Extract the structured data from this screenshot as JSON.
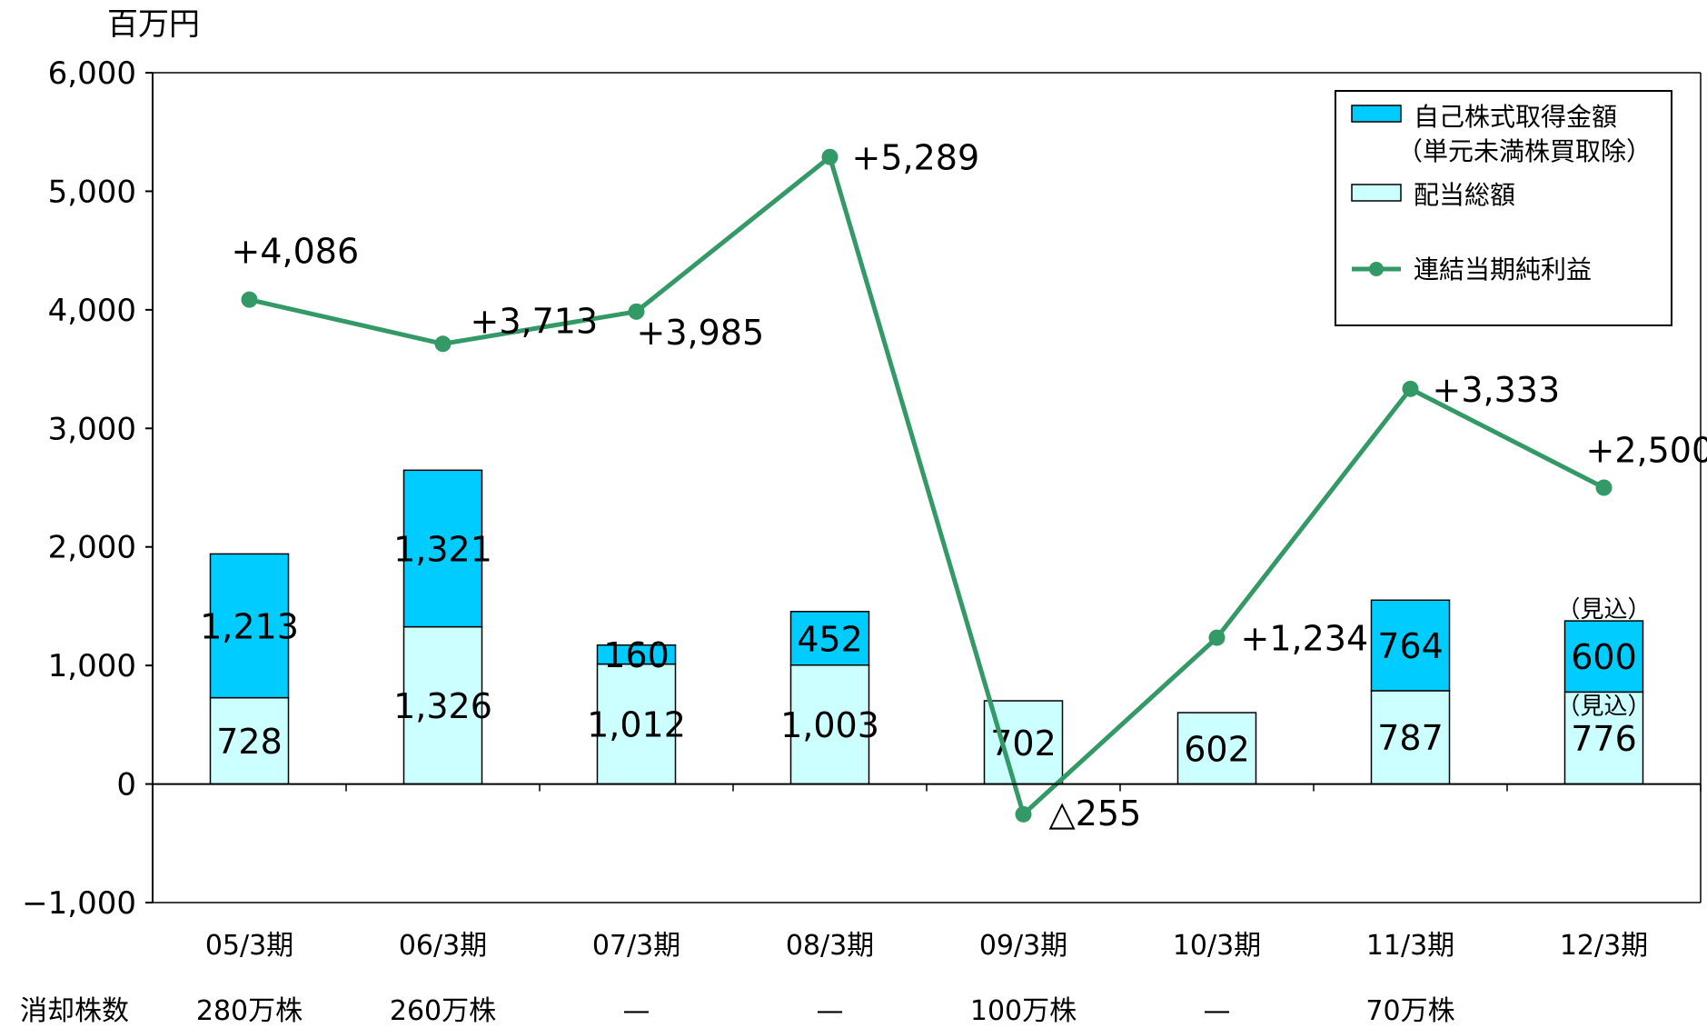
{
  "chart_data": {
    "type": "bar",
    "unit_label": "百万円",
    "categories": [
      "05/3期",
      "06/3期",
      "07/3期",
      "08/3期",
      "09/3期",
      "10/3期",
      "11/3期",
      "12/3期"
    ],
    "ylim": [
      -1000,
      6000
    ],
    "yticks": [
      6000,
      5000,
      4000,
      3000,
      2000,
      1000,
      0,
      -1000
    ],
    "ytick_labels": [
      "6,000",
      "5,000",
      "4,000",
      "3,000",
      "2,000",
      "1,000",
      "0",
      "−1,000"
    ],
    "grid": false,
    "legend_position": "top-right",
    "series": [
      {
        "name": "配当総額",
        "kind": "bar",
        "color": "#ccffff",
        "values": [
          728,
          1326,
          1012,
          1003,
          702,
          602,
          787,
          776
        ],
        "labels": [
          "728",
          "1,326",
          "1,012",
          "1,003",
          "702",
          "602",
          "787",
          "776"
        ]
      },
      {
        "name": "自己株式取得金額",
        "name_line2": "（単元未満株買取除）",
        "kind": "bar",
        "color": "#00ccff",
        "values": [
          1213,
          1321,
          160,
          452,
          0,
          0,
          764,
          600
        ],
        "labels": [
          "1,213",
          "1,321",
          "160",
          "452",
          "",
          "",
          "764",
          "600"
        ]
      },
      {
        "name": "連結当期純利益",
        "kind": "line",
        "color": "#339966",
        "values": [
          4086,
          3713,
          3985,
          5289,
          -255,
          1234,
          3333,
          2500
        ],
        "labels": [
          "+4,086",
          "+3,713",
          "+3,985",
          "+5,289",
          "△255",
          "+1,234",
          "+3,333",
          "+2,500"
        ]
      }
    ],
    "annotations": [
      {
        "category_index": 7,
        "series": "自己株式取得金額",
        "text": "（見込）"
      },
      {
        "category_index": 7,
        "series": "配当総額",
        "text": "（見込）"
      }
    ],
    "footer_row": {
      "label": "消却株数",
      "values": [
        "280万株",
        "260万株",
        "—",
        "—",
        "100万株",
        "—",
        "70万株",
        ""
      ]
    }
  }
}
